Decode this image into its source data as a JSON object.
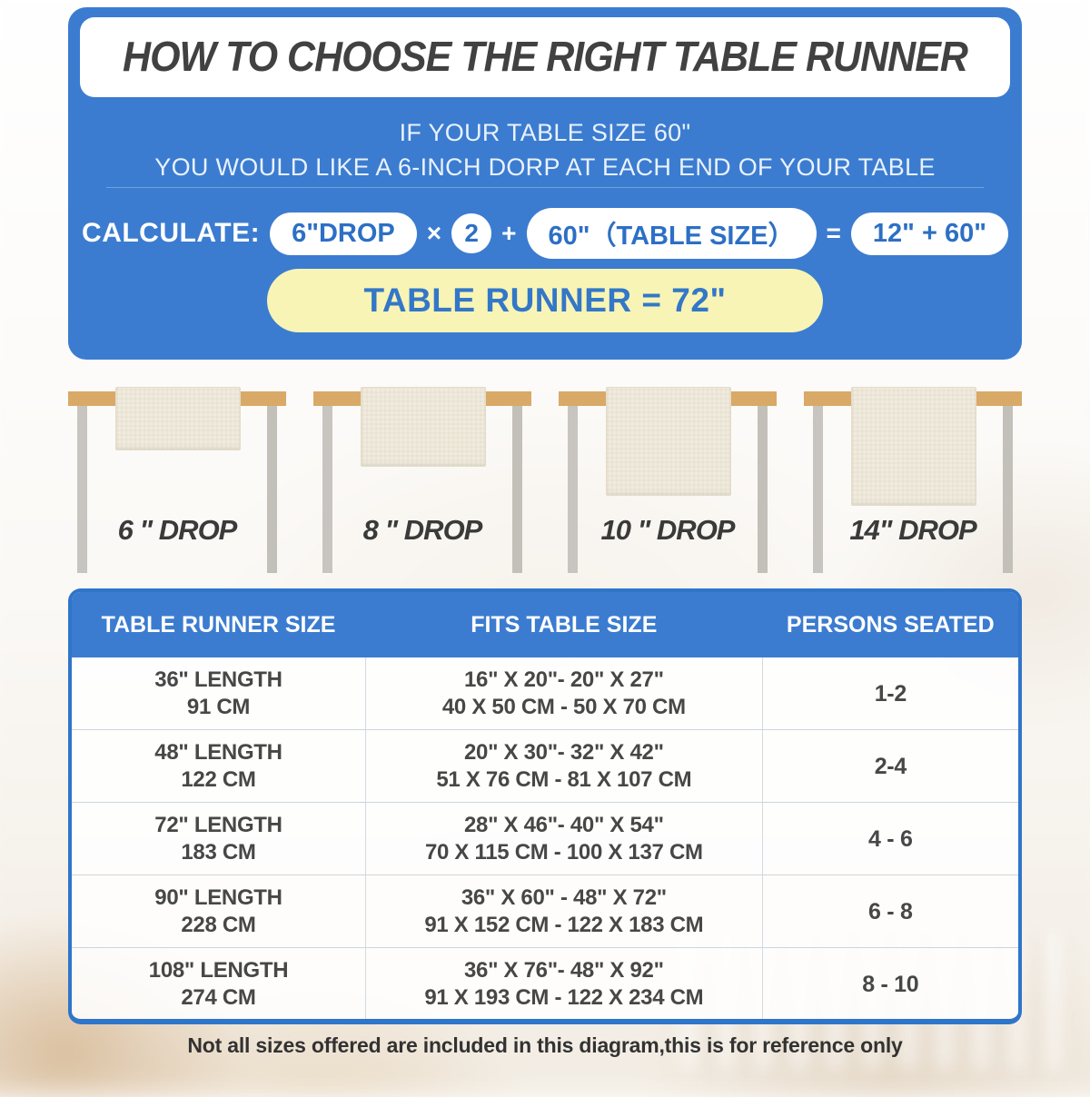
{
  "header": {
    "title": "HOW TO CHOOSE THE RIGHT TABLE RUNNER",
    "line1": "IF YOUR TABLE SIZE 60\"",
    "line2": "YOU WOULD LIKE A 6-INCH DORP AT EACH END OF YOUR TABLE"
  },
  "calc": {
    "label": "CALCULATE:",
    "pill_drop": "6\"DROP",
    "op_times": "×",
    "pill_factor": "2",
    "op_plus": "+",
    "pill_table_size": "60\"（TABLE SIZE）",
    "op_equals": "=",
    "pill_sum": "12\" + 60\"",
    "result": "TABLE RUNNER = 72\""
  },
  "drops": [
    {
      "label": "6 \" DROP"
    },
    {
      "label": "8 \" DROP"
    },
    {
      "label": "10 \" DROP"
    },
    {
      "label": "14\" DROP"
    }
  ],
  "size_table": {
    "headers": [
      "TABLE RUNNER SIZE",
      "FITS TABLE SIZE",
      "PERSONS SEATED"
    ],
    "rows": [
      {
        "runner_in": "36\" LENGTH",
        "runner_cm": "91 CM",
        "fits_in": "16\" X 20\"- 20\" X 27\"",
        "fits_cm": "40 X 50 CM - 50 X 70 CM",
        "persons": "1-2"
      },
      {
        "runner_in": "48\" LENGTH",
        "runner_cm": "122 CM",
        "fits_in": "20\" X 30\"- 32\" X 42\"",
        "fits_cm": "51 X 76 CM - 81 X 107 CM",
        "persons": "2-4"
      },
      {
        "runner_in": "72\" LENGTH",
        "runner_cm": "183 CM",
        "fits_in": "28\" X 46\"- 40\" X 54\"",
        "fits_cm": "70 X 115 CM - 100 X 137 CM",
        "persons": "4 - 6"
      },
      {
        "runner_in": "90\" LENGTH",
        "runner_cm": "228 CM",
        "fits_in": "36\" X 60\" - 48\" X 72\"",
        "fits_cm": "91 X 152 CM - 122 X 183 CM",
        "persons": "6 - 8"
      },
      {
        "runner_in": "108\" LENGTH",
        "runner_cm": "274 CM",
        "fits_in": "36\" X 76\"- 48\" X 92\"",
        "fits_cm": "91 X 193 CM - 122 X 234 CM",
        "persons": "8 - 10"
      }
    ]
  },
  "footer_note": "Not all sizes offered are included in this diagram,this is for reference only",
  "colors": {
    "panel_blue": "#3b7cd0",
    "pill_text_blue": "#2d6fc4",
    "result_yellow": "#f8f4b6",
    "tabletop_tan": "#d9a967",
    "leg_gray": "#c8c4bf",
    "runner_cream": "#f0ebdd",
    "title_gray": "#414141"
  }
}
